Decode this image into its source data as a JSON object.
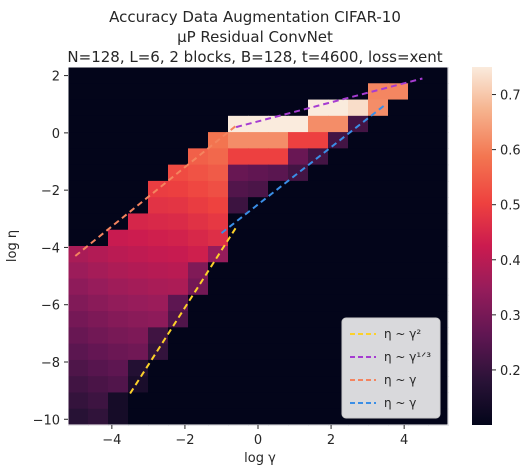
{
  "chart_data": {
    "type": "heatmap",
    "title_lines": [
      "Accuracy Data Augmentation CIFAR-10",
      "μP Residual ConvNet",
      "N=128, L=6, 2 blocks, B=128, t=4600, loss=xent"
    ],
    "xlabel": "log γ",
    "ylabel": "log η",
    "xlim": [
      -5.2,
      5.2
    ],
    "ylim": [
      -10.2,
      2.3
    ],
    "xticks": [
      -4,
      -2,
      0,
      2,
      4
    ],
    "yticks": [
      2,
      0,
      -2,
      -4,
      -6,
      -8,
      -10
    ],
    "grid": false,
    "colormap": "rocket",
    "colorbar": {
      "min": 0.1,
      "max": 0.75,
      "ticks": [
        0.2,
        0.3,
        0.4,
        0.5,
        0.6,
        0.7
      ]
    },
    "cell_columns": 19,
    "cell_rows": 22,
    "legend": {
      "placement": "lower-right",
      "entries": [
        {
          "label": "η ~ γ²",
          "color": "#fcd12a"
        },
        {
          "label": "η ~ γ¹ᐟ³",
          "color": "#a63cd1"
        },
        {
          "label": "η ~ γ",
          "color": "#f4845f"
        },
        {
          "label": "η ~ γ",
          "color": "#3a8ee6"
        }
      ]
    },
    "fit_lines": [
      {
        "color": "#fcd12a",
        "points": [
          [
            -3.5,
            -9.1
          ],
          [
            -0.6,
            -3.3
          ]
        ]
      },
      {
        "color": "#a63cd1",
        "points": [
          [
            -0.6,
            0.2
          ],
          [
            4.5,
            1.9
          ]
        ]
      },
      {
        "color": "#f4845f",
        "points": [
          [
            -5.0,
            -4.3
          ],
          [
            -0.6,
            0.25
          ]
        ]
      },
      {
        "color": "#3a8ee6",
        "points": [
          [
            -1.0,
            -3.5
          ],
          [
            3.5,
            1.0
          ]
        ]
      }
    ]
  }
}
